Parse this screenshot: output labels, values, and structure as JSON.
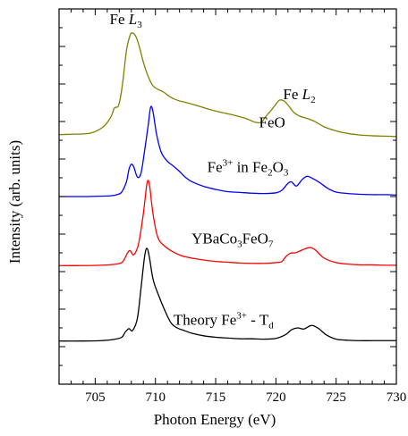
{
  "chart_data": {
    "type": "line",
    "title": "",
    "xlabel": "Photon Energy (eV)",
    "ylabel": "Intensity (arb. units)",
    "xlim": [
      702,
      730
    ],
    "ylim": [
      0,
      1
    ],
    "x_ticks": [
      705,
      710,
      715,
      720,
      725,
      730
    ],
    "y_tick_labels_shown": false,
    "grid": false,
    "legend": "none",
    "annotations": [
      {
        "text": "Fe L3",
        "base": "Fe ",
        "italic": "L",
        "sub": "3",
        "x": 706.2,
        "y": 0.96
      },
      {
        "text": "Fe L2",
        "base": "Fe ",
        "italic": "L",
        "sub": "2",
        "x": 720.6,
        "y": 0.76
      }
    ],
    "series": [
      {
        "name": "FeO",
        "label_parts": [
          {
            "t": "FeO"
          }
        ],
        "label_pos": {
          "x": 718.6,
          "y": 0.685
        },
        "color": "#808000",
        "points": [
          [
            702,
            0.665
          ],
          [
            703,
            0.666
          ],
          [
            704,
            0.667
          ],
          [
            704.6,
            0.669
          ],
          [
            705.2,
            0.676
          ],
          [
            705.8,
            0.69
          ],
          [
            706.3,
            0.712
          ],
          [
            706.6,
            0.736
          ],
          [
            706.9,
            0.74
          ],
          [
            707.1,
            0.765
          ],
          [
            707.3,
            0.808
          ],
          [
            707.6,
            0.89
          ],
          [
            707.9,
            0.93
          ],
          [
            708.1,
            0.936
          ],
          [
            708.4,
            0.925
          ],
          [
            708.7,
            0.895
          ],
          [
            709.0,
            0.858
          ],
          [
            709.4,
            0.82
          ],
          [
            709.8,
            0.795
          ],
          [
            710.2,
            0.786
          ],
          [
            710.7,
            0.778
          ],
          [
            711.2,
            0.766
          ],
          [
            711.8,
            0.757
          ],
          [
            712.5,
            0.751
          ],
          [
            713.5,
            0.742
          ],
          [
            714.5,
            0.732
          ],
          [
            715.5,
            0.724
          ],
          [
            716.5,
            0.717
          ],
          [
            717.5,
            0.708
          ],
          [
            718.3,
            0.698
          ],
          [
            718.8,
            0.698
          ],
          [
            719.1,
            0.711
          ],
          [
            719.5,
            0.726
          ],
          [
            719.9,
            0.742
          ],
          [
            720.3,
            0.757
          ],
          [
            720.7,
            0.754
          ],
          [
            721.1,
            0.74
          ],
          [
            721.5,
            0.724
          ],
          [
            722.0,
            0.714
          ],
          [
            722.6,
            0.708
          ],
          [
            723.3,
            0.699
          ],
          [
            724,
            0.686
          ],
          [
            725,
            0.675
          ],
          [
            726,
            0.668
          ],
          [
            727,
            0.664
          ],
          [
            728,
            0.662
          ],
          [
            729,
            0.661
          ],
          [
            730,
            0.66
          ]
        ]
      },
      {
        "name": "Fe3+ in Fe2O3",
        "label_parts": [
          {
            "t": "Fe"
          },
          {
            "t": "3+",
            "sup": true
          },
          {
            "t": " in Fe"
          },
          {
            "t": "2",
            "sub": true
          },
          {
            "t": "O"
          },
          {
            "t": "3",
            "sub": true
          }
        ],
        "label_pos": {
          "x": 714.3,
          "y": 0.565
        },
        "color": "#0000ff",
        "points": [
          [
            702,
            0.5
          ],
          [
            704,
            0.5
          ],
          [
            705.5,
            0.501
          ],
          [
            706.3,
            0.502
          ],
          [
            706.8,
            0.505
          ],
          [
            707.2,
            0.512
          ],
          [
            707.6,
            0.54
          ],
          [
            707.8,
            0.572
          ],
          [
            708.0,
            0.586
          ],
          [
            708.2,
            0.579
          ],
          [
            708.5,
            0.552
          ],
          [
            708.8,
            0.562
          ],
          [
            709.1,
            0.622
          ],
          [
            709.4,
            0.69
          ],
          [
            709.6,
            0.738
          ],
          [
            709.8,
            0.726
          ],
          [
            710.1,
            0.665
          ],
          [
            710.5,
            0.617
          ],
          [
            711.0,
            0.594
          ],
          [
            711.5,
            0.581
          ],
          [
            712.0,
            0.567
          ],
          [
            712.5,
            0.551
          ],
          [
            713,
            0.54
          ],
          [
            714,
            0.527
          ],
          [
            715,
            0.519
          ],
          [
            716,
            0.513
          ],
          [
            717,
            0.511
          ],
          [
            718,
            0.509
          ],
          [
            719,
            0.508
          ],
          [
            720,
            0.51
          ],
          [
            720.5,
            0.517
          ],
          [
            721.0,
            0.535
          ],
          [
            721.3,
            0.539
          ],
          [
            721.7,
            0.528
          ],
          [
            722.2,
            0.546
          ],
          [
            722.6,
            0.554
          ],
          [
            723.0,
            0.549
          ],
          [
            723.6,
            0.538
          ],
          [
            724.3,
            0.522
          ],
          [
            725,
            0.512
          ],
          [
            726,
            0.508
          ],
          [
            727,
            0.506
          ],
          [
            728,
            0.505
          ],
          [
            729,
            0.505
          ],
          [
            730,
            0.504
          ]
        ]
      },
      {
        "name": "YBaCo3FeO7",
        "label_parts": [
          {
            "t": "YBaCo"
          },
          {
            "t": "3",
            "sub": true
          },
          {
            "t": "FeO"
          },
          {
            "t": "7",
            "sub": true
          }
        ],
        "label_pos": {
          "x": 713.0,
          "y": 0.375
        },
        "color": "#ff0000",
        "points": [
          [
            702,
            0.316
          ],
          [
            704,
            0.316
          ],
          [
            705.5,
            0.317
          ],
          [
            706.5,
            0.319
          ],
          [
            707.2,
            0.324
          ],
          [
            707.5,
            0.338
          ],
          [
            707.7,
            0.351
          ],
          [
            707.9,
            0.356
          ],
          [
            708.2,
            0.345
          ],
          [
            708.6,
            0.374
          ],
          [
            709.0,
            0.455
          ],
          [
            709.3,
            0.535
          ],
          [
            709.5,
            0.532
          ],
          [
            709.8,
            0.454
          ],
          [
            710.2,
            0.391
          ],
          [
            710.8,
            0.367
          ],
          [
            711.5,
            0.352
          ],
          [
            712.2,
            0.342
          ],
          [
            713,
            0.336
          ],
          [
            714,
            0.331
          ],
          [
            715,
            0.327
          ],
          [
            716,
            0.325
          ],
          [
            717,
            0.323
          ],
          [
            718,
            0.322
          ],
          [
            719,
            0.322
          ],
          [
            720,
            0.324
          ],
          [
            720.5,
            0.327
          ],
          [
            720.8,
            0.339
          ],
          [
            721.2,
            0.349
          ],
          [
            721.6,
            0.35
          ],
          [
            722.0,
            0.355
          ],
          [
            722.5,
            0.362
          ],
          [
            722.9,
            0.364
          ],
          [
            723.3,
            0.357
          ],
          [
            724,
            0.336
          ],
          [
            725,
            0.324
          ],
          [
            726,
            0.32
          ],
          [
            727,
            0.318
          ],
          [
            728,
            0.318
          ],
          [
            729,
            0.317
          ],
          [
            730,
            0.317
          ]
        ]
      },
      {
        "name": "Theory Fe3+ - Td",
        "label_parts": [
          {
            "t": "Theory Fe"
          },
          {
            "t": "3+",
            "sup": true
          },
          {
            "t": " - T"
          },
          {
            "t": "d",
            "sub": true
          }
        ],
        "label_pos": {
          "x": 711.5,
          "y": 0.158
        },
        "color": "#000000",
        "points": [
          [
            702,
            0.115
          ],
          [
            704,
            0.115
          ],
          [
            705.5,
            0.116
          ],
          [
            706.5,
            0.119
          ],
          [
            707.2,
            0.125
          ],
          [
            707.5,
            0.139
          ],
          [
            707.8,
            0.148
          ],
          [
            708.1,
            0.143
          ],
          [
            708.5,
            0.175
          ],
          [
            708.8,
            0.255
          ],
          [
            709.1,
            0.34
          ],
          [
            709.3,
            0.362
          ],
          [
            709.5,
            0.338
          ],
          [
            709.8,
            0.28
          ],
          [
            710.2,
            0.242
          ],
          [
            710.8,
            0.195
          ],
          [
            711.3,
            0.163
          ],
          [
            711.8,
            0.15
          ],
          [
            712.3,
            0.144
          ],
          [
            713,
            0.136
          ],
          [
            714,
            0.129
          ],
          [
            715,
            0.125
          ],
          [
            716,
            0.123
          ],
          [
            717,
            0.121
          ],
          [
            718,
            0.121
          ],
          [
            719,
            0.12
          ],
          [
            720,
            0.122
          ],
          [
            720.8,
            0.132
          ],
          [
            721.3,
            0.145
          ],
          [
            721.8,
            0.15
          ],
          [
            722.3,
            0.147
          ],
          [
            722.8,
            0.155
          ],
          [
            723.1,
            0.156
          ],
          [
            723.6,
            0.147
          ],
          [
            724.2,
            0.131
          ],
          [
            725,
            0.12
          ],
          [
            726,
            0.117
          ],
          [
            727,
            0.116
          ],
          [
            728,
            0.116
          ],
          [
            729,
            0.116
          ],
          [
            730,
            0.116
          ]
        ]
      }
    ]
  }
}
